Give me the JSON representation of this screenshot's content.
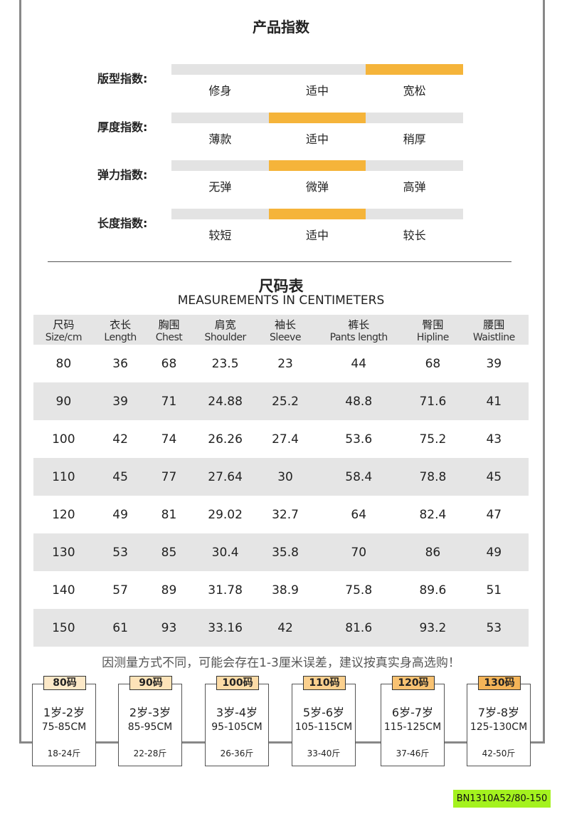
{
  "product_index": {
    "title": "产品指数",
    "rows": [
      {
        "label": "版型指数:",
        "options": [
          "修身",
          "适中",
          "宽松"
        ],
        "selected": 2
      },
      {
        "label": "厚度指数:",
        "options": [
          "薄款",
          "适中",
          "稍厚"
        ],
        "selected": 1
      },
      {
        "label": "弹力指数:",
        "options": [
          "无弹",
          "微弹",
          "高弹"
        ],
        "selected": 1
      },
      {
        "label": "长度指数:",
        "options": [
          "较短",
          "适中",
          "较长"
        ],
        "selected": 1
      }
    ],
    "accent": "#f5b43a"
  },
  "size_table": {
    "title": "尺码表",
    "subtitle": "MEASUREMENTS IN CENTIMETERS",
    "headers": [
      [
        "尺码",
        "Size/cm"
      ],
      [
        "衣长",
        "Length"
      ],
      [
        "胸围",
        "Chest"
      ],
      [
        "肩宽",
        "Shoulder"
      ],
      [
        "袖长",
        "Sleeve"
      ],
      [
        "裤长",
        "Pants length"
      ],
      [
        "臀围",
        "Hipline"
      ],
      [
        "腰围",
        "Waistline"
      ]
    ],
    "rows": [
      [
        "80",
        "36",
        "68",
        "23.5",
        "23",
        "44",
        "68",
        "39"
      ],
      [
        "90",
        "39",
        "71",
        "24.88",
        "25.2",
        "48.8",
        "71.6",
        "41"
      ],
      [
        "100",
        "42",
        "74",
        "26.26",
        "27.4",
        "53.6",
        "75.2",
        "43"
      ],
      [
        "110",
        "45",
        "77",
        "27.64",
        "30",
        "58.4",
        "78.8",
        "45"
      ],
      [
        "120",
        "49",
        "81",
        "29.02",
        "32.7",
        "64",
        "82.4",
        "47"
      ],
      [
        "130",
        "53",
        "85",
        "30.4",
        "35.8",
        "70",
        "86",
        "49"
      ],
      [
        "140",
        "57",
        "89",
        "31.78",
        "38.9",
        "75.8",
        "89.6",
        "51"
      ],
      [
        "150",
        "61",
        "93",
        "33.16",
        "42",
        "81.6",
        "93.2",
        "53"
      ]
    ]
  },
  "note": "因测量方式不同，可能会存在1-3厘米误差，建议按真实身高选购！",
  "size_guide": [
    {
      "size": "80码",
      "age": "1岁-2岁",
      "height": "75-85CM",
      "weight": "18-24斤",
      "color": "#fde9c8"
    },
    {
      "size": "90码",
      "age": "2岁-3岁",
      "height": "85-95CM",
      "weight": "22-28斤",
      "color": "#fde3b8"
    },
    {
      "size": "100码",
      "age": "3岁-4岁",
      "height": "95-105CM",
      "weight": "26-36斤",
      "color": "#fcdba6"
    },
    {
      "size": "110码",
      "age": "5岁-6岁",
      "height": "105-115CM",
      "weight": "33-40斤",
      "color": "#fbd08e"
    },
    {
      "size": "120码",
      "age": "6岁-7岁",
      "height": "115-125CM",
      "weight": "37-46斤",
      "color": "#f8c272"
    },
    {
      "size": "130码",
      "age": "7岁-8岁",
      "height": "125-130CM",
      "weight": "42-50斤",
      "color": "#f4b458"
    }
  ],
  "product_code": "BN1310A52/80-150"
}
